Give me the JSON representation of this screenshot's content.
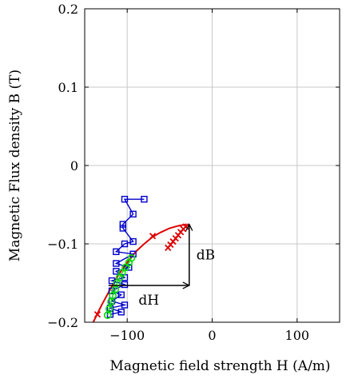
{
  "chart_data": {
    "type": "line",
    "xlabel": "Magnetic field strength H (A/m)",
    "ylabel": "Magnetic Flux density B (T)",
    "xlim": [
      -150,
      150
    ],
    "ylim": [
      -0.2,
      0.2
    ],
    "x_ticks": [
      {
        "value": -100,
        "label": "−100"
      },
      {
        "value": 0,
        "label": "0"
      },
      {
        "value": 100,
        "label": "100"
      }
    ],
    "y_ticks": [
      {
        "value": -0.2,
        "label": "−0.2"
      },
      {
        "value": -0.1,
        "label": "−0.1"
      },
      {
        "value": 0,
        "label": "0"
      },
      {
        "value": 0.1,
        "label": "0.1"
      },
      {
        "value": 0.2,
        "label": "0.2"
      }
    ],
    "grid": true,
    "series": [
      {
        "marker": "square",
        "color": "#0000cc",
        "points": [
          [
            -80,
            -0.043
          ],
          [
            -103,
            -0.043
          ],
          [
            -93,
            -0.062
          ],
          [
            -105,
            -0.075
          ],
          [
            -105,
            -0.08
          ],
          [
            -93,
            -0.097
          ],
          [
            -103,
            -0.1
          ],
          [
            -113,
            -0.11
          ],
          [
            -93,
            -0.113
          ],
          [
            -113,
            -0.125
          ],
          [
            -98,
            -0.13
          ],
          [
            -113,
            -0.135
          ],
          [
            -103,
            -0.143
          ],
          [
            -118,
            -0.147
          ],
          [
            -103,
            -0.152
          ],
          [
            -118,
            -0.16
          ],
          [
            -107,
            -0.165
          ],
          [
            -118,
            -0.173
          ],
          [
            -103,
            -0.178
          ],
          [
            -120,
            -0.182
          ],
          [
            -107,
            -0.187
          ],
          [
            -120,
            -0.19
          ]
        ]
      },
      {
        "marker": "circle",
        "color": "#00dd00",
        "points": [
          [
            -95,
            -0.118
          ],
          [
            -98,
            -0.124
          ],
          [
            -102,
            -0.13
          ],
          [
            -106,
            -0.137
          ],
          [
            -109,
            -0.143
          ],
          [
            -112,
            -0.15
          ],
          [
            -114,
            -0.158
          ],
          [
            -117,
            -0.166
          ],
          [
            -119,
            -0.174
          ],
          [
            -121,
            -0.183
          ],
          [
            -123,
            -0.191
          ]
        ]
      },
      {
        "marker": "cross",
        "color": "#dd0000",
        "points": [
          [
            -135,
            -0.19
          ],
          [
            -70,
            -0.09
          ],
          [
            -31,
            -0.078
          ],
          [
            -34,
            -0.081
          ],
          [
            -37,
            -0.085
          ],
          [
            -40,
            -0.089
          ],
          [
            -43,
            -0.093
          ],
          [
            -46,
            -0.097
          ],
          [
            -49,
            -0.101
          ],
          [
            -52,
            -0.105
          ]
        ]
      }
    ],
    "fit_curve": {
      "color": "#dd0000",
      "points": [
        [
          -140,
          -0.2
        ],
        [
          -130,
          -0.178
        ],
        [
          -120,
          -0.158
        ],
        [
          -110,
          -0.139
        ],
        [
          -100,
          -0.124
        ],
        [
          -90,
          -0.11
        ],
        [
          -80,
          -0.1
        ],
        [
          -70,
          -0.091
        ],
        [
          -60,
          -0.085
        ],
        [
          -50,
          -0.08
        ],
        [
          -40,
          -0.077
        ],
        [
          -30,
          -0.075
        ]
      ]
    },
    "annotations": {
      "dH": {
        "label": "dH",
        "from": [
          -122,
          -0.153
        ],
        "to": [
          -27,
          -0.153
        ]
      },
      "dB": {
        "label": "dB",
        "from": [
          -27,
          -0.153
        ],
        "to": [
          -27,
          -0.075
        ]
      }
    }
  }
}
